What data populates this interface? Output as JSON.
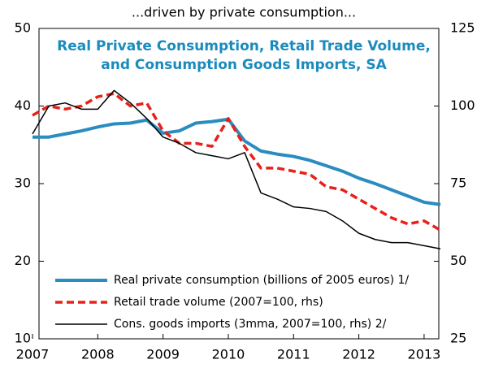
{
  "chart_data": {
    "type": "line",
    "title": "...driven by private consumption...",
    "subtitle": [
      "Real Private Consumption, Retail Trade Volume,",
      "and Consumption Goods Imports, SA"
    ],
    "x": [
      2007,
      2007.25,
      2007.5,
      2007.75,
      2008,
      2008.25,
      2008.5,
      2008.75,
      2009,
      2009.25,
      2009.5,
      2009.75,
      2010,
      2010.25,
      2010.5,
      2010.75,
      2011,
      2011.25,
      2011.5,
      2011.75,
      2012,
      2012.25,
      2012.5,
      2012.75,
      2013,
      2013.25
    ],
    "xlim": [
      2007,
      2013.3
    ],
    "xticks": [
      2007,
      2008,
      2009,
      2010,
      2011,
      2012,
      2013
    ],
    "ylim": [
      10,
      50
    ],
    "yticks": [
      10,
      20,
      30,
      40,
      50
    ],
    "y2lim": [
      25,
      125
    ],
    "y2ticks": [
      25,
      50,
      75,
      100,
      125
    ],
    "series": [
      {
        "name": "Real private consumption (billions of 2005 euros) 1/",
        "color": "#2a8cbf",
        "style": "solid",
        "values": [
          36,
          36,
          36.4,
          36.8,
          37.3,
          37.7,
          37.8,
          38.2,
          36.5,
          36.8,
          37.8,
          38,
          38.3,
          35.5,
          34.2,
          33.8,
          33.5,
          33,
          32.3,
          31.6,
          30.7,
          30,
          29.2,
          28.4,
          27.6,
          27.3
        ]
      },
      {
        "name": "Retail trade volume (2007=100, rhs)",
        "color": "#e8201a",
        "style": "dashed",
        "axis": "y2",
        "values": [
          97,
          100,
          99,
          100,
          103,
          104,
          100,
          101,
          92,
          88,
          88,
          87,
          96,
          87,
          80,
          80,
          79,
          78,
          74,
          73,
          70,
          67,
          64,
          62,
          63,
          60
        ]
      },
      {
        "name": "Cons. goods imports (3mma, 2007=100, rhs) 2/",
        "color": "#000000",
        "style": "thin",
        "axis": "y2",
        "values": [
          91,
          100,
          101,
          99,
          99,
          105,
          101,
          96,
          90,
          88,
          85,
          84,
          83,
          85,
          72,
          70,
          67.5,
          67,
          66,
          63,
          59,
          57,
          56,
          56,
          55,
          54
        ]
      }
    ],
    "legend": "lower left"
  }
}
